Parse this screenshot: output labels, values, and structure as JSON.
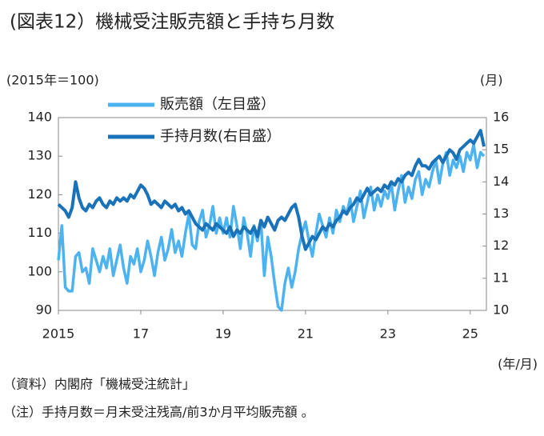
{
  "chart_data": {
    "type": "line",
    "title": "(図表12）機械受注販売額と手持ち月数",
    "y_label": "(2015年＝100)",
    "y2_label": "(月)",
    "x_label": "(年/月)",
    "notes": [
      "（資料）内閣府「機械受注統計」",
      "（注）手持月数＝月末受注残高/前3か月平均販売額 。"
    ],
    "categories": [
      "2015",
      null,
      null,
      null,
      null,
      null,
      null,
      null,
      null,
      null,
      null,
      null,
      null,
      null,
      null,
      null,
      null,
      null,
      null,
      null,
      null,
      null,
      null,
      null,
      "17",
      null,
      null,
      null,
      null,
      null,
      null,
      null,
      null,
      null,
      null,
      null,
      null,
      null,
      null,
      null,
      null,
      null,
      null,
      null,
      null,
      null,
      null,
      null,
      "19",
      null,
      null,
      null,
      null,
      null,
      null,
      null,
      null,
      null,
      null,
      null,
      null,
      null,
      null,
      null,
      null,
      null,
      null,
      null,
      null,
      null,
      null,
      null,
      "21",
      null,
      null,
      null,
      null,
      null,
      null,
      null,
      null,
      null,
      null,
      null,
      null,
      null,
      null,
      null,
      null,
      null,
      null,
      null,
      null,
      null,
      null,
      null,
      "23",
      null,
      null,
      null,
      null,
      null,
      null,
      null,
      null,
      null,
      null,
      null,
      null,
      null,
      null,
      null,
      null,
      null,
      null,
      null,
      null,
      null,
      null,
      null,
      "25",
      null,
      null,
      null,
      null
    ],
    "ylim": [
      90,
      140
    ],
    "yticks": [
      90,
      100,
      110,
      120,
      130,
      140
    ],
    "y2lim": [
      10,
      16
    ],
    "y2ticks": [
      10,
      11,
      12,
      13,
      14,
      15,
      16
    ],
    "series": [
      {
        "name": "販売額（左目盛）",
        "color": "#4db3f0",
        "values": [
          103,
          112,
          96,
          95,
          95,
          104,
          105,
          100,
          101,
          97,
          106,
          103,
          100,
          104,
          101,
          106,
          99,
          103,
          107,
          101,
          97,
          104,
          102,
          106,
          100,
          103,
          108,
          104,
          99,
          105,
          109,
          103,
          106,
          111,
          105,
          108,
          104,
          110,
          115,
          107,
          106,
          113,
          116,
          109,
          112,
          117,
          110,
          114,
          110,
          114,
          109,
          117,
          112,
          106,
          114,
          110,
          104,
          112,
          108,
          113,
          99,
          109,
          104,
          97,
          91,
          90,
          97,
          101,
          96,
          100,
          106,
          110,
          113,
          108,
          104,
          110,
          115,
          112,
          109,
          114,
          110,
          116,
          113,
          117,
          115,
          119,
          113,
          117,
          121,
          114,
          118,
          122,
          116,
          120,
          117,
          121,
          119,
          123,
          116,
          121,
          125,
          118,
          122,
          119,
          124,
          126,
          120,
          124,
          122,
          126,
          129,
          123,
          128,
          131,
          125,
          129,
          127,
          130,
          126,
          131,
          129,
          133,
          127,
          131,
          130
        ]
      },
      {
        "name": "手持月数(右目盛）",
        "color": "#1a72b8",
        "axis": "y2",
        "values": [
          13.3,
          13.2,
          13.1,
          12.9,
          13.2,
          14.0,
          13.5,
          13.2,
          13.1,
          13.3,
          13.2,
          13.4,
          13.5,
          13.3,
          13.2,
          13.4,
          13.3,
          13.5,
          13.4,
          13.5,
          13.4,
          13.6,
          13.5,
          13.7,
          13.9,
          13.8,
          13.6,
          13.3,
          13.4,
          13.3,
          13.2,
          13.4,
          13.3,
          13.2,
          13.3,
          13.1,
          13.2,
          13.0,
          13.1,
          12.9,
          12.7,
          12.6,
          12.5,
          12.7,
          12.6,
          12.5,
          12.7,
          12.6,
          12.5,
          12.4,
          12.6,
          12.3,
          12.5,
          12.4,
          12.6,
          12.5,
          12.4,
          12.6,
          12.3,
          12.8,
          12.6,
          12.9,
          12.7,
          12.5,
          12.8,
          12.9,
          12.8,
          13.0,
          13.2,
          13.3,
          12.9,
          12.3,
          11.9,
          12.1,
          12.3,
          12.2,
          12.4,
          12.6,
          12.5,
          12.7,
          12.6,
          12.8,
          12.9,
          13.1,
          13.0,
          13.2,
          13.3,
          13.5,
          13.4,
          13.6,
          13.8,
          13.6,
          13.7,
          13.8,
          13.7,
          13.9,
          13.8,
          14.0,
          13.9,
          14.1,
          14.0,
          14.2,
          14.3,
          14.2,
          14.5,
          14.7,
          14.5,
          14.5,
          14.4,
          14.6,
          14.7,
          14.8,
          14.6,
          14.8,
          15.0,
          14.9,
          14.7,
          15.0,
          15.1,
          15.2,
          15.3,
          15.2,
          15.4,
          15.6,
          15.1
        ]
      }
    ]
  }
}
